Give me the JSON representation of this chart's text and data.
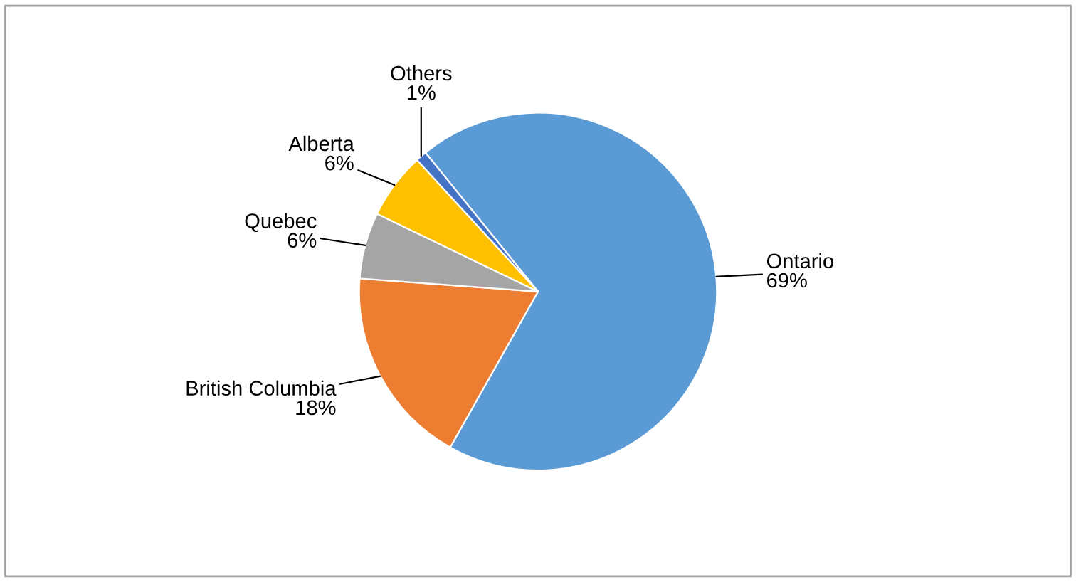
{
  "chart_data": {
    "type": "pie",
    "categories": [
      "Ontario",
      "British Columbia",
      "Quebec",
      "Alberta",
      "Others"
    ],
    "values": [
      69,
      18,
      6,
      6,
      1
    ],
    "value_labels": [
      "69%",
      "18%",
      "6%",
      "6%",
      "1%"
    ],
    "colors": [
      "#5b9bd5",
      "#ed7d31",
      "#a5a5a5",
      "#ffc000",
      "#4472c4"
    ],
    "legend": false
  }
}
